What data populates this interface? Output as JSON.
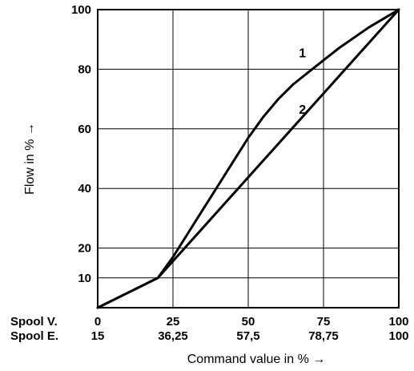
{
  "chart_data": {
    "type": "line",
    "title": "",
    "xlabel": "Command value in % →",
    "ylabel": "Flow in % →",
    "xlim": [
      0,
      100
    ],
    "ylim": [
      0,
      100
    ],
    "grid": true,
    "x_rows": [
      {
        "name": "Spool V.",
        "ticks": [
          0,
          25,
          50,
          75,
          100
        ],
        "labels": [
          "0",
          "25",
          "50",
          "75",
          "100"
        ]
      },
      {
        "name": "Spool E.",
        "ticks": [
          0,
          25,
          50,
          75,
          100
        ],
        "labels": [
          "15",
          "36,25",
          "57,5",
          "78,75",
          "100"
        ]
      }
    ],
    "y_ticks": [
      10,
      20,
      40,
      60,
      80,
      100
    ],
    "y_tick_labels": [
      "10",
      "20",
      "40",
      "60",
      "80",
      "100"
    ],
    "series": [
      {
        "name": "1",
        "x": [
          0,
          20,
          25,
          30,
          35,
          40,
          45,
          50,
          55,
          60,
          65,
          70,
          75,
          80,
          85,
          90,
          95,
          100
        ],
        "y": [
          0,
          10,
          17,
          25,
          33,
          41,
          49,
          57,
          64,
          70,
          75,
          79,
          83,
          87,
          90.5,
          94,
          97,
          100
        ]
      },
      {
        "name": "2",
        "x": [
          0,
          20,
          100
        ],
        "y": [
          0,
          10,
          100
        ]
      }
    ],
    "annotations": [
      {
        "text": "1",
        "x": 68,
        "y": 84
      },
      {
        "text": "2",
        "x": 68,
        "y": 65
      }
    ]
  }
}
